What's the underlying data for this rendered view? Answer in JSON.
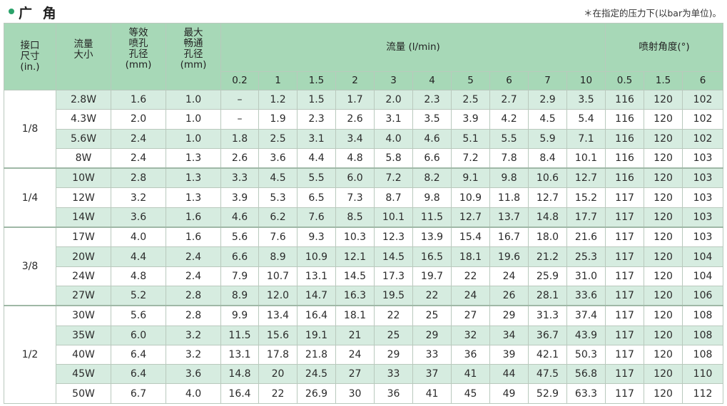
{
  "header": {
    "title": "广 角",
    "note": "＊在指定的压力下(以bar为单位)。"
  },
  "table": {
    "col_size": "接口\n尺寸\n(in.)",
    "col_flow_size": "流量\n大小",
    "col_equiv_orifice": "等效\n喷孔\n孔径\n(mm)",
    "col_max_passage": "最大\n畅通\n孔径\n(mm)",
    "group_flow": "流量 (l/min)",
    "group_angle": "喷射角度(°)",
    "flow_pressures": [
      "0.2",
      "1",
      "1.5",
      "2",
      "3",
      "4",
      "5",
      "6",
      "7",
      "10"
    ],
    "angle_pressures": [
      "0.5",
      "1.5",
      "6"
    ],
    "groups": [
      {
        "size": "1/8",
        "rows": [
          {
            "model": "2.8W",
            "orifice": "1.6",
            "passage": "1.0",
            "flow": [
              "–",
              "1.2",
              "1.5",
              "1.7",
              "2.0",
              "2.3",
              "2.5",
              "2.7",
              "2.9",
              "3.5"
            ],
            "angle": [
              "116",
              "120",
              "102"
            ]
          },
          {
            "model": "4.3W",
            "orifice": "2.0",
            "passage": "1.0",
            "flow": [
              "–",
              "1.9",
              "2.3",
              "2.6",
              "3.1",
              "3.5",
              "3.9",
              "4.2",
              "4.5",
              "5.4"
            ],
            "angle": [
              "116",
              "120",
              "102"
            ]
          },
          {
            "model": "5.6W",
            "orifice": "2.4",
            "passage": "1.0",
            "flow": [
              "1.8",
              "2.5",
              "3.1",
              "3.4",
              "4.0",
              "4.6",
              "5.1",
              "5.5",
              "5.9",
              "7.1"
            ],
            "angle": [
              "116",
              "120",
              "102"
            ]
          },
          {
            "model": "8W",
            "orifice": "2.4",
            "passage": "1.3",
            "flow": [
              "2.6",
              "3.6",
              "4.4",
              "4.8",
              "5.8",
              "6.6",
              "7.2",
              "7.8",
              "8.4",
              "10.1"
            ],
            "angle": [
              "116",
              "120",
              "103"
            ]
          }
        ]
      },
      {
        "size": "1/4",
        "rows": [
          {
            "model": "10W",
            "orifice": "2.8",
            "passage": "1.3",
            "flow": [
              "3.3",
              "4.5",
              "5.5",
              "6.0",
              "7.2",
              "8.2",
              "9.1",
              "9.8",
              "10.6",
              "12.7"
            ],
            "angle": [
              "116",
              "120",
              "103"
            ]
          },
          {
            "model": "12W",
            "orifice": "3.2",
            "passage": "1.3",
            "flow": [
              "3.9",
              "5.3",
              "6.5",
              "7.3",
              "8.7",
              "9.8",
              "10.9",
              "11.8",
              "12.7",
              "15.2"
            ],
            "angle": [
              "117",
              "120",
              "103"
            ]
          },
          {
            "model": "14W",
            "orifice": "3.6",
            "passage": "1.6",
            "flow": [
              "4.6",
              "6.2",
              "7.6",
              "8.5",
              "10.1",
              "11.5",
              "12.7",
              "13.7",
              "14.8",
              "17.7"
            ],
            "angle": [
              "117",
              "120",
              "103"
            ]
          }
        ]
      },
      {
        "size": "3/8",
        "rows": [
          {
            "model": "17W",
            "orifice": "4.0",
            "passage": "1.6",
            "flow": [
              "5.6",
              "7.6",
              "9.3",
              "10.3",
              "12.3",
              "13.9",
              "15.4",
              "16.7",
              "18.0",
              "21.6"
            ],
            "angle": [
              "117",
              "120",
              "103"
            ]
          },
          {
            "model": "20W",
            "orifice": "4.4",
            "passage": "2.4",
            "flow": [
              "6.6",
              "8.9",
              "10.9",
              "12.1",
              "14.5",
              "16.5",
              "18.1",
              "19.6",
              "21.2",
              "25.3"
            ],
            "angle": [
              "117",
              "120",
              "104"
            ]
          },
          {
            "model": "24W",
            "orifice": "4.8",
            "passage": "2.4",
            "flow": [
              "7.9",
              "10.7",
              "13.1",
              "14.5",
              "17.3",
              "19.7",
              "22",
              "24",
              "25.9",
              "31.0"
            ],
            "angle": [
              "117",
              "120",
              "104"
            ]
          },
          {
            "model": "27W",
            "orifice": "5.2",
            "passage": "2.8",
            "flow": [
              "8.9",
              "12.0",
              "14.7",
              "16.3",
              "19.5",
              "22",
              "24",
              "26",
              "28.1",
              "33.6"
            ],
            "angle": [
              "117",
              "120",
              "106"
            ]
          }
        ]
      },
      {
        "size": "1/2",
        "rows": [
          {
            "model": "30W",
            "orifice": "5.6",
            "passage": "2.8",
            "flow": [
              "9.9",
              "13.4",
              "16.4",
              "18.1",
              "22",
              "25",
              "27",
              "29",
              "31.3",
              "37.4"
            ],
            "angle": [
              "117",
              "120",
              "108"
            ]
          },
          {
            "model": "35W",
            "orifice": "6.0",
            "passage": "3.2",
            "flow": [
              "11.5",
              "15.6",
              "19.1",
              "21",
              "25",
              "29",
              "32",
              "34",
              "36.7",
              "43.9"
            ],
            "angle": [
              "117",
              "120",
              "108"
            ]
          },
          {
            "model": "40W",
            "orifice": "6.4",
            "passage": "3.2",
            "flow": [
              "13.1",
              "17.8",
              "21.8",
              "24",
              "29",
              "33",
              "36",
              "39",
              "42.1",
              "50.3"
            ],
            "angle": [
              "117",
              "120",
              "108"
            ]
          },
          {
            "model": "45W",
            "orifice": "6.4",
            "passage": "3.6",
            "flow": [
              "14.8",
              "20",
              "24.5",
              "27",
              "33",
              "37",
              "41",
              "44",
              "47.5",
              "56.8"
            ],
            "angle": [
              "117",
              "120",
              "110"
            ]
          },
          {
            "model": "50W",
            "orifice": "6.7",
            "passage": "4.0",
            "flow": [
              "16.4",
              "22",
              "26.9",
              "30",
              "36",
              "41",
              "45",
              "49",
              "52.9",
              "63.3"
            ],
            "angle": [
              "117",
              "120",
              "112"
            ]
          }
        ]
      }
    ]
  }
}
